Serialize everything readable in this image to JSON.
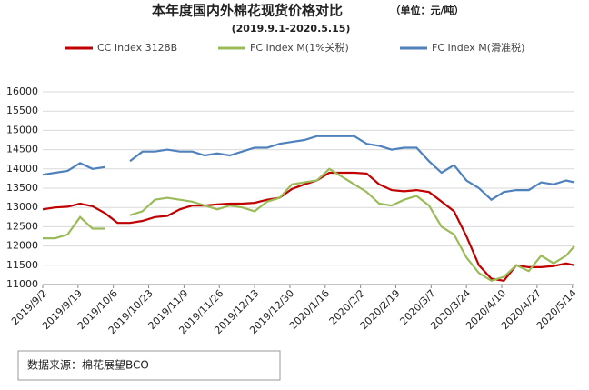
{
  "chart_data": {
    "type": "line",
    "title": "本年度国内外棉花现货价格对比",
    "unit": "（单位：元/吨）",
    "subtitle": "(2019.9.1-2020.5.15)",
    "source": "数据来源：棉花展望BCO",
    "x": [
      "2019/9/2",
      "2019/9/8",
      "2019/9/14",
      "2019/9/20",
      "2019/9/26",
      "2019/10/2",
      "2019/10/8",
      "2019/10/14",
      "2019/10/20",
      "2019/10/26",
      "2019/11/1",
      "2019/11/7",
      "2019/11/13",
      "2019/11/19",
      "2019/11/25",
      "2019/12/1",
      "2019/12/7",
      "2019/12/13",
      "2019/12/19",
      "2019/12/25",
      "2019/12/31",
      "2020/1/6",
      "2020/1/12",
      "2020/1/18",
      "2020/1/24",
      "2020/1/30",
      "2020/2/5",
      "2020/2/11",
      "2020/2/17",
      "2020/2/23",
      "2020/2/29",
      "2020/3/6",
      "2020/3/12",
      "2020/3/18",
      "2020/3/24",
      "2020/3/30",
      "2020/4/5",
      "2020/4/11",
      "2020/4/17",
      "2020/4/23",
      "2020/4/29",
      "2020/5/5",
      "2020/5/11",
      "2020/5/15"
    ],
    "series": [
      {
        "name": "CC Index 3128B",
        "color": "#c00000",
        "values": [
          12950,
          13000,
          13020,
          13100,
          13030,
          12850,
          12600,
          12600,
          12650,
          12750,
          12780,
          12950,
          13050,
          13050,
          13080,
          13100,
          13100,
          13120,
          13200,
          13250,
          13480,
          13600,
          13700,
          13900,
          13900,
          13900,
          13880,
          13600,
          13450,
          13420,
          13450,
          13400,
          13150,
          12900,
          12250,
          11500,
          11150,
          11100,
          11500,
          11450,
          11450,
          11480,
          11550,
          11500
        ]
      },
      {
        "name": "FC Index M(1%关税)",
        "color": "#9bbb59",
        "values": [
          12200,
          12200,
          12300,
          12750,
          12450,
          12450,
          null,
          12800,
          12900,
          13200,
          13250,
          13200,
          13150,
          13050,
          12950,
          13050,
          13000,
          12900,
          13150,
          13250,
          13600,
          13650,
          13700,
          14000,
          13800,
          13600,
          13400,
          13100,
          13050,
          13200,
          13300,
          13050,
          12500,
          12300,
          11700,
          11300,
          11100,
          11200,
          11500,
          11350,
          11750,
          11550,
          11750,
          12000
        ]
      },
      {
        "name": "FC Index M(滑准税)",
        "color": "#4f81bd",
        "values": [
          13850,
          13900,
          13950,
          14150,
          14000,
          14050,
          null,
          14200,
          14450,
          14450,
          14500,
          14450,
          14450,
          14350,
          14400,
          14350,
          14450,
          14550,
          14550,
          14650,
          14700,
          14750,
          14850,
          14850,
          14850,
          14850,
          14650,
          14600,
          14500,
          14550,
          14550,
          14200,
          13900,
          14100,
          13700,
          13500,
          13200,
          13400,
          13450,
          13450,
          13650,
          13600,
          13700,
          13650
        ]
      }
    ],
    "xlim": [
      "2019/9/2",
      "2020/5/15"
    ],
    "xticks": [
      "2019/9/2",
      "2019/9/19",
      "2019/10/6",
      "2019/10/23",
      "2019/11/9",
      "2019/11/26",
      "2019/12/13",
      "2019/12/30",
      "2020/1/16",
      "2020/2/2",
      "2020/2/19",
      "2020/3/7",
      "2020/3/24",
      "2020/4/10",
      "2020/4/27",
      "2020/5/14"
    ],
    "ylim": [
      11000,
      16000
    ],
    "yticks": [
      11000,
      11500,
      12000,
      12500,
      13000,
      13500,
      14000,
      14500,
      15000,
      15500,
      16000
    ],
    "grid": true
  }
}
